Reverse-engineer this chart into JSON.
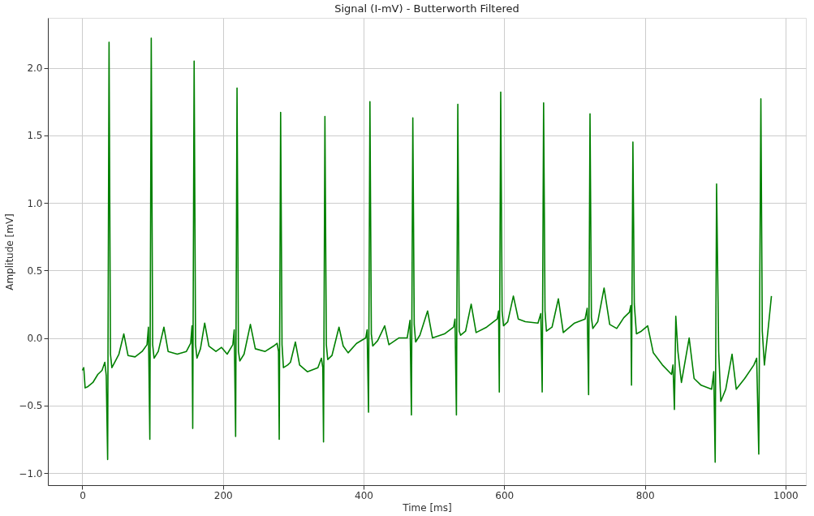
{
  "chart_data": {
    "type": "line",
    "title": "Signal (I-mV) - Butterworth Filtered",
    "xlabel": "Time [ms]",
    "ylabel": "Amplitude [mV]",
    "x": [
      0,
      2,
      4,
      8,
      15,
      22,
      28,
      32,
      34,
      36,
      38,
      40,
      42,
      46,
      52,
      59,
      65,
      75,
      85,
      92,
      94,
      96,
      98,
      100,
      102,
      108,
      116,
      122,
      135,
      148,
      154,
      156,
      157,
      159,
      161,
      163,
      168,
      174,
      180,
      190,
      198,
      206,
      214,
      216,
      218,
      220,
      222,
      224,
      230,
      239,
      246,
      260,
      272,
      277,
      279,
      280,
      282,
      284,
      286,
      292,
      296,
      303,
      309,
      320,
      335,
      340,
      342,
      343,
      345,
      347,
      349,
      355,
      365,
      371,
      378,
      390,
      403,
      405,
      407,
      409,
      411,
      413,
      420,
      430,
      436,
      450,
      462,
      466,
      468,
      470,
      472,
      474,
      480,
      491,
      498,
      515,
      528,
      530,
      532,
      534,
      536,
      538,
      545,
      553,
      560,
      575,
      590,
      592,
      593,
      595,
      597,
      599,
      605,
      613,
      620,
      630,
      648,
      652,
      654,
      656,
      658,
      660,
      668,
      677,
      684,
      700,
      715,
      718,
      720,
      722,
      724,
      726,
      733,
      742,
      750,
      760,
      770,
      778,
      780,
      781,
      783,
      785,
      788,
      795,
      804,
      812,
      825,
      838,
      840,
      842,
      844,
      847,
      852,
      863,
      870,
      880,
      895,
      898,
      900,
      902,
      905,
      908,
      915,
      924,
      930,
      942,
      955,
      959,
      962,
      965,
      967,
      970,
      975,
      980
    ],
    "series": [
      {
        "color": "#008000",
        "values": [
          -0.24,
          -0.22,
          -0.37,
          -0.36,
          -0.33,
          -0.27,
          -0.24,
          -0.18,
          -0.28,
          -0.9,
          2.19,
          -0.12,
          -0.22,
          -0.18,
          -0.12,
          0.03,
          -0.13,
          -0.14,
          -0.1,
          -0.05,
          0.08,
          -0.75,
          2.22,
          -0.05,
          -0.15,
          -0.1,
          0.08,
          -0.1,
          -0.12,
          -0.1,
          -0.04,
          0.09,
          -0.67,
          2.05,
          -0.05,
          -0.15,
          -0.08,
          0.11,
          -0.06,
          -0.1,
          -0.07,
          -0.12,
          -0.05,
          0.06,
          -0.73,
          1.85,
          -0.1,
          -0.17,
          -0.12,
          0.1,
          -0.08,
          -0.1,
          -0.06,
          -0.04,
          -0.1,
          -0.75,
          1.67,
          -0.05,
          -0.22,
          -0.2,
          -0.18,
          -0.03,
          -0.2,
          -0.25,
          -0.22,
          -0.15,
          -0.22,
          -0.77,
          1.64,
          -0.05,
          -0.16,
          -0.13,
          0.08,
          -0.06,
          -0.11,
          -0.04,
          0.0,
          0.06,
          -0.55,
          1.75,
          0.03,
          -0.06,
          -0.02,
          0.09,
          -0.05,
          0.0,
          0.0,
          0.13,
          -0.57,
          1.63,
          0.1,
          -0.03,
          0.02,
          0.2,
          0.0,
          0.03,
          0.08,
          0.14,
          -0.57,
          1.73,
          0.05,
          0.02,
          0.05,
          0.25,
          0.04,
          0.08,
          0.14,
          0.2,
          -0.4,
          1.82,
          0.2,
          0.09,
          0.12,
          0.31,
          0.14,
          0.12,
          0.11,
          0.18,
          -0.4,
          1.74,
          0.2,
          0.05,
          0.08,
          0.29,
          0.04,
          0.11,
          0.14,
          0.22,
          -0.42,
          1.66,
          0.15,
          0.07,
          0.12,
          0.37,
          0.1,
          0.07,
          0.15,
          0.19,
          0.24,
          -0.35,
          1.45,
          0.25,
          0.03,
          0.05,
          0.09,
          -0.11,
          -0.2,
          -0.27,
          -0.2,
          -0.53,
          0.16,
          -0.1,
          -0.33,
          0.0,
          -0.3,
          -0.35,
          -0.38,
          -0.25,
          -0.92,
          1.14,
          -0.1,
          -0.47,
          -0.38,
          -0.12,
          -0.38,
          -0.3,
          -0.2,
          -0.15,
          -0.86,
          1.77,
          0.05,
          -0.2,
          0.05,
          0.31
        ]
      }
    ],
    "xlim": [
      -49,
      1029
    ],
    "ylim": [
      -1.09,
      2.37
    ],
    "xticks": [
      0,
      200,
      400,
      600,
      800,
      1000
    ],
    "yticks": [
      {
        "value": -1.0,
        "label": "−1.0"
      },
      {
        "value": -0.5,
        "label": "−0.5"
      },
      {
        "value": 0.0,
        "label": "0.0"
      },
      {
        "value": 0.5,
        "label": "0.5"
      },
      {
        "value": 1.0,
        "label": "1.0"
      },
      {
        "value": 1.5,
        "label": "1.5"
      },
      {
        "value": 2.0,
        "label": "2.0"
      }
    ],
    "grid": true
  }
}
